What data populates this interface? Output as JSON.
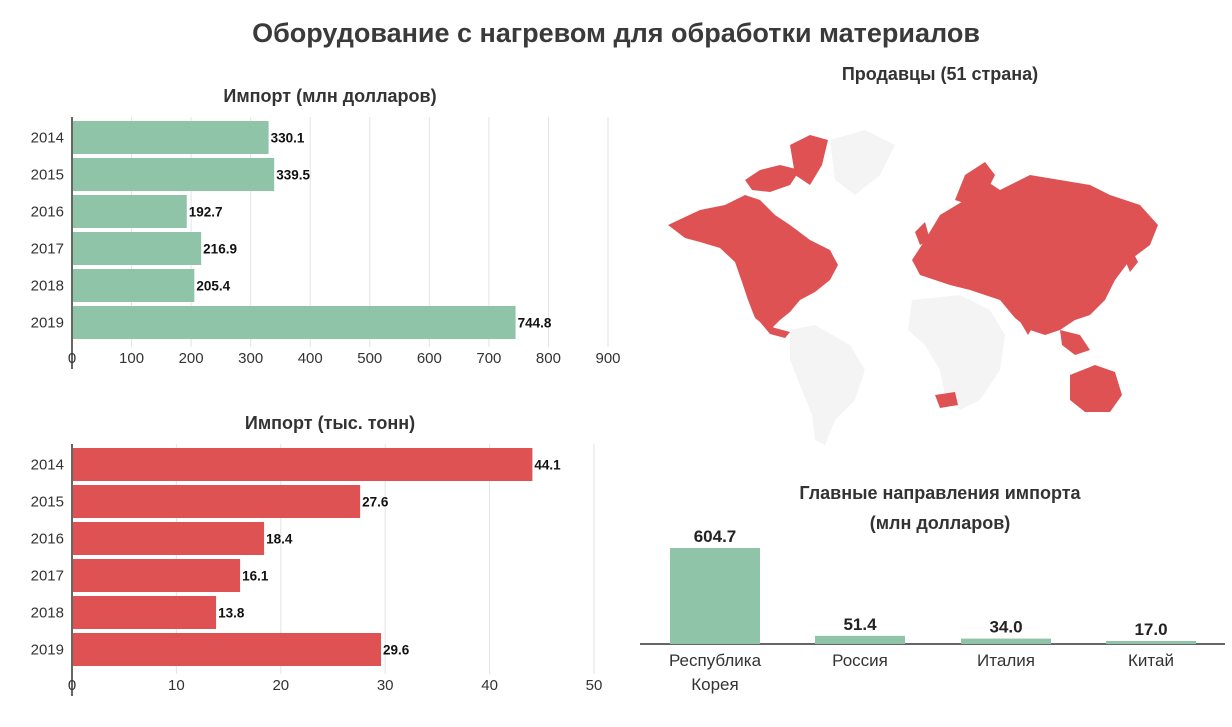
{
  "title": "Оборудование с нагревом для обработки материалов",
  "chart_data": [
    {
      "type": "bar",
      "orientation": "horizontal",
      "title": "Импорт (млн долларов)",
      "categories": [
        "2014",
        "2015",
        "2016",
        "2017",
        "2018",
        "2019"
      ],
      "values": [
        330.1,
        339.5,
        192.7,
        216.9,
        205.4,
        744.8
      ],
      "value_labels": [
        "330.1",
        "339.5",
        "192.7",
        "216.9",
        "205.4",
        "744.8"
      ],
      "xlim": [
        0,
        900
      ],
      "ticks": [
        0,
        100,
        200,
        300,
        400,
        500,
        600,
        700,
        800,
        900
      ],
      "color": "#8fc4a8",
      "grid": true
    },
    {
      "type": "bar",
      "orientation": "horizontal",
      "title": "Импорт (тыс. тонн)",
      "categories": [
        "2014",
        "2015",
        "2016",
        "2017",
        "2018",
        "2019"
      ],
      "values": [
        44.1,
        27.6,
        18.4,
        16.1,
        13.8,
        29.6
      ],
      "value_labels": [
        "44.1",
        "27.6",
        "18.4",
        "16.1",
        "13.8",
        "29.6"
      ],
      "xlim": [
        0,
        50
      ],
      "ticks": [
        0,
        10,
        20,
        30,
        40,
        50
      ],
      "color": "#de5254",
      "grid": true
    },
    {
      "type": "bar",
      "orientation": "vertical",
      "title_lines": [
        "Главные направления импорта",
        "(млн долларов)"
      ],
      "categories": [
        [
          "Республика",
          "Корея"
        ],
        [
          "Россия"
        ],
        [
          "Италия"
        ],
        [
          "Китай"
        ]
      ],
      "values": [
        604.7,
        51.4,
        34.0,
        17.0
      ],
      "value_labels": [
        "604.7",
        "51.4",
        "34.0",
        "17.0"
      ],
      "color": "#8fc4a8"
    }
  ],
  "map": {
    "title": "Продавцы (51 страна)",
    "highlight_color": "#de5254",
    "base_color": "#f4f4f4"
  }
}
